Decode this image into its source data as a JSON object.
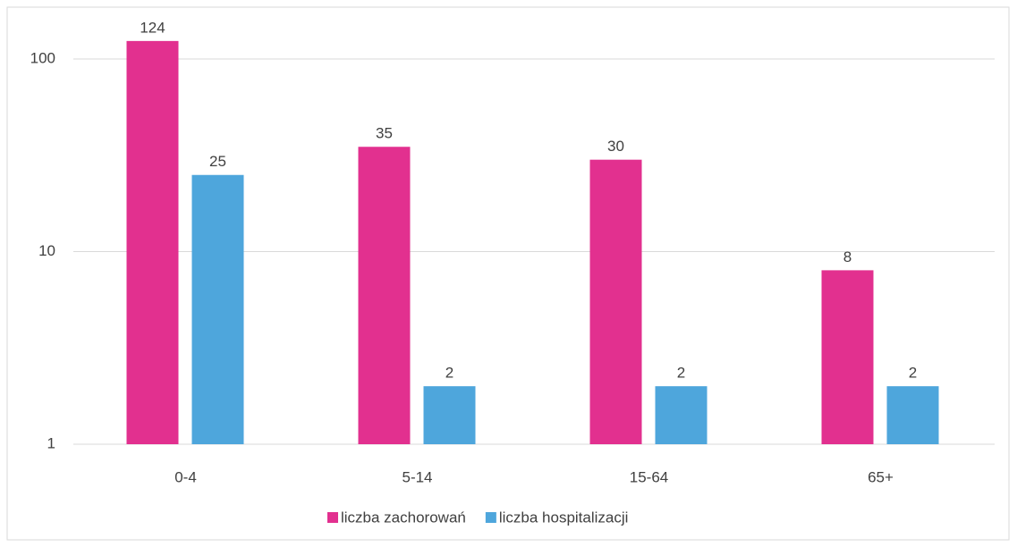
{
  "chart_data": {
    "type": "bar",
    "log_scale": true,
    "grid": true,
    "legend": "bottom",
    "categories": [
      "0-4",
      "5-14",
      "15-64",
      "65+"
    ],
    "series": [
      {
        "name": "liczba zachorowań",
        "color": "#e2308f",
        "values": [
          124,
          35,
          30,
          8
        ]
      },
      {
        "name": "liczba hospitalizacji",
        "color": "#4ea6dc",
        "values": [
          25,
          2,
          2,
          2
        ]
      }
    ],
    "ylim": [
      1,
      150
    ],
    "yticks": [
      1,
      10,
      100
    ]
  }
}
